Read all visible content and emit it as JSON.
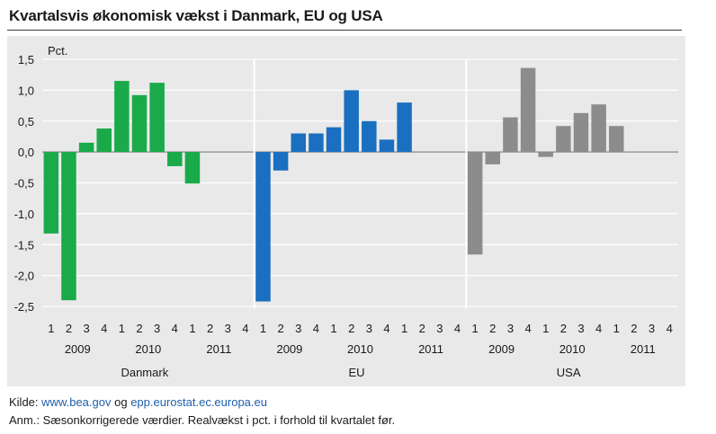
{
  "title": "Kvartalsvis økonomisk vækst i Danmark, EU og USA",
  "footer": {
    "source_label": "Kilde:",
    "link1": "www.bea.gov",
    "joiner": "og",
    "link2": "epp.eurostat.ec.europa.eu",
    "note": "Anm.: Sæsonkorrigerede værdier. Realvækst i pct. i forhold til kvartalet før."
  },
  "colors": {
    "Danmark": "#1aaa4a",
    "EU": "#1a6fc0",
    "USA": "#8c8c8c",
    "panel": "#e9e9e9"
  },
  "chart_data": {
    "type": "bar",
    "ylabel": "Pct.",
    "ylim": [
      -2.5,
      1.5
    ],
    "yticks": [
      1.5,
      1.0,
      0.5,
      0.0,
      -0.5,
      -1.0,
      -1.5,
      -2.0,
      -2.5
    ],
    "ytick_labels": [
      "1,5",
      "1,0",
      "0,5",
      "0,0",
      "-0,5",
      "-1,0",
      "-1,5",
      "-2,0",
      "-2,5"
    ],
    "grid": true,
    "quarters": [
      "1",
      "2",
      "3",
      "4",
      "1",
      "2",
      "3",
      "4",
      "1",
      "2",
      "3",
      "4"
    ],
    "years": [
      "2009",
      "2010",
      "2011"
    ],
    "panels": [
      {
        "name": "Danmark",
        "values": [
          -1.32,
          -2.4,
          0.15,
          0.38,
          1.15,
          0.92,
          1.12,
          -0.23,
          -0.51,
          null,
          null,
          null
        ]
      },
      {
        "name": "EU",
        "values": [
          -2.42,
          -0.3,
          0.3,
          0.3,
          0.4,
          1.0,
          0.5,
          0.2,
          0.8,
          null,
          null,
          null
        ]
      },
      {
        "name": "USA",
        "values": [
          -1.66,
          -0.2,
          0.56,
          1.36,
          -0.08,
          0.42,
          0.63,
          0.77,
          0.42,
          null,
          null,
          null
        ]
      }
    ]
  }
}
